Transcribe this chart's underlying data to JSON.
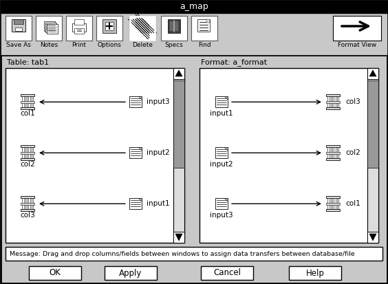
{
  "title": "a_map",
  "bg_color": "#c8c8c8",
  "white": "#ffffff",
  "black": "#000000",
  "gray_scroll": "#999999",
  "light_gray": "#dddddd",
  "toolbar_items": [
    "Save As",
    "Notes",
    "Print",
    "Options",
    "Delete",
    "Specs",
    "Find",
    "Format View"
  ],
  "table_label": "Table: tab1",
  "format_label": "Format: a_format",
  "left_cols": [
    "col1",
    "col2",
    "col3"
  ],
  "left_inputs": [
    "input3",
    "input2",
    "input1"
  ],
  "right_inputs": [
    "input1",
    "input2",
    "input3"
  ],
  "right_cols": [
    "col3",
    "col2",
    "col1"
  ],
  "message": "Message: Drag and drop columns/fields between windows to assign data transfers between database/file",
  "buttons": [
    "OK",
    "Apply",
    "Cancel",
    "Help"
  ]
}
